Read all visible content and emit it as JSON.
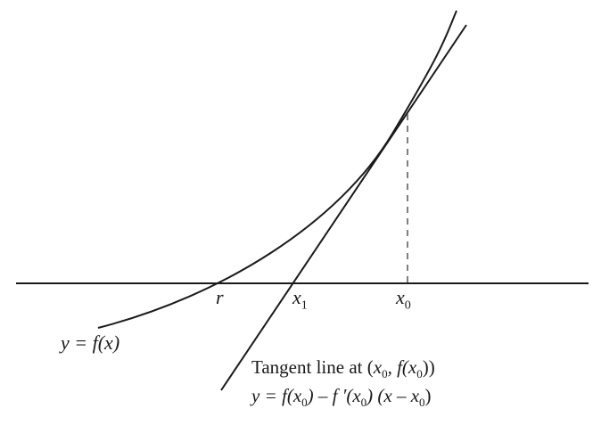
{
  "labels": {
    "root": "r",
    "x1_var": "x",
    "x1_sub": "1",
    "x0_var": "x",
    "x0_sub": "0",
    "curve_label": "y = f(x)",
    "tangent_title_prefix": "Tangent line at (",
    "tangent_title_x": "x",
    "tangent_title_sub": "0",
    "tangent_title_mid": ", f(",
    "tangent_title_x2": "x",
    "tangent_title_sub2": "0",
    "tangent_title_suffix": "))",
    "tangent_eq_a": "y = f(",
    "tangent_eq_x": "x",
    "tangent_eq_sub": "0",
    "tangent_eq_b": ") – f ′(",
    "tangent_eq_x2": "x",
    "tangent_eq_sub2": "0",
    "tangent_eq_c": ") (x – ",
    "tangent_eq_x3": "x",
    "tangent_eq_sub3": "0",
    "tangent_eq_d": ")"
  },
  "colors": {
    "stroke": "#1a1a1a",
    "dashed": "#555555"
  }
}
